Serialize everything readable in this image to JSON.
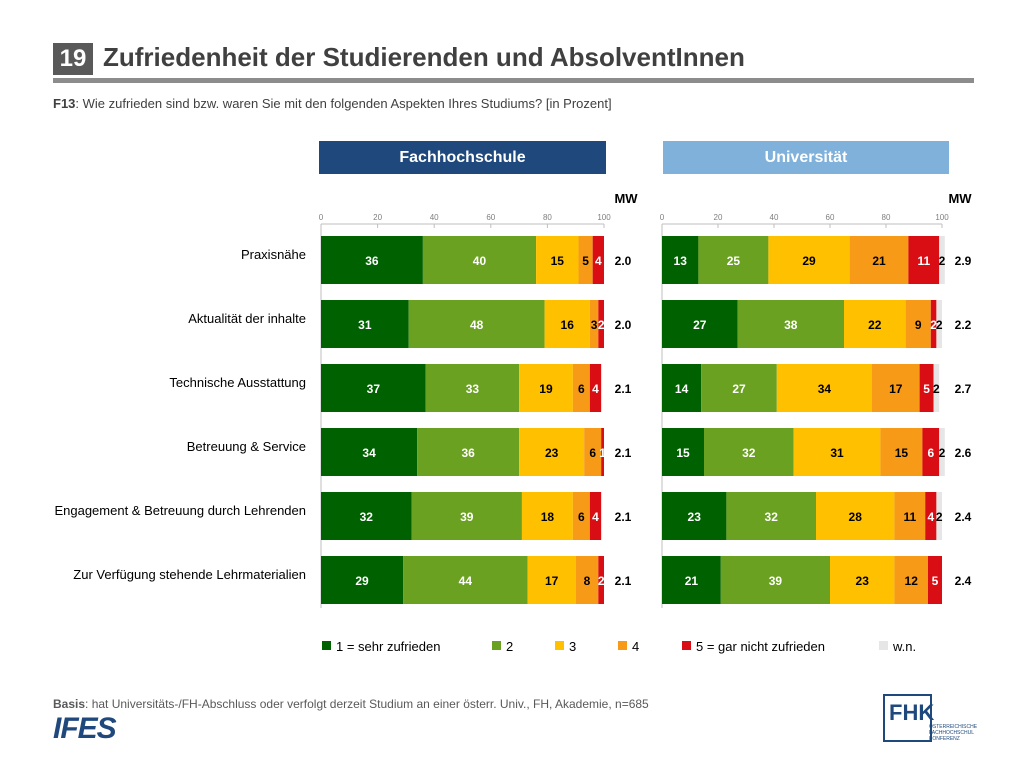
{
  "slide": {
    "number": "19",
    "title": "Zufriedenheit der Studierenden und AbsolventInnen"
  },
  "question": {
    "code": "F13",
    "text": ": Wie zufrieden sind bzw. waren Sie mit den folgenden Aspekten Ihres Studiums? [in Prozent]"
  },
  "basis": {
    "label": "Basis",
    "text": ": hat Universitäts-/FH-Abschluss oder verfolgt derzeit Studium an einer österr. Univ., FH, Akademie, n=685"
  },
  "logos": {
    "left": "IFES",
    "right_letters": "FHK",
    "right_sub": [
      "ÖSTERREICHISCHE",
      "FACHHOCHSCHUL",
      "KONFERENZ"
    ]
  },
  "colors": {
    "c1": "#006100",
    "c2": "#6aa121",
    "c3": "#ffc000",
    "c4": "#f79a18",
    "c5": "#d80e14",
    "wn": "#e6e6e6",
    "fh_header": "#1f497d",
    "uni_header": "#7fb1da"
  },
  "chart_data": [
    {
      "type": "bar",
      "stacked": true,
      "orientation": "horizontal",
      "title": "Fachhochschule",
      "value_label": "MW",
      "xlim": [
        0,
        100
      ],
      "xticks": [
        0,
        20,
        40,
        60,
        80,
        100
      ],
      "categories": [
        "Praxisnähe",
        "Aktualität der inhalte",
        "Technische Ausstattung",
        "Betreuung & Service",
        "Engagement & Betreuung durch Lehrenden",
        "Zur Verfügung stehende Lehrmaterialien"
      ],
      "series": [
        {
          "name": "1 = sehr zufrieden",
          "values": [
            36,
            31,
            37,
            34,
            32,
            29
          ]
        },
        {
          "name": "2",
          "values": [
            40,
            48,
            33,
            36,
            39,
            44
          ]
        },
        {
          "name": "3",
          "values": [
            15,
            16,
            19,
            23,
            18,
            17
          ]
        },
        {
          "name": "4",
          "values": [
            5,
            3,
            6,
            6,
            6,
            8
          ]
        },
        {
          "name": "5 = gar nicht zufrieden",
          "values": [
            4,
            2,
            4,
            1,
            4,
            2
          ]
        },
        {
          "name": "w.n.",
          "values": [
            0,
            0,
            0,
            0,
            0,
            0
          ]
        }
      ],
      "mw": [
        "2.0",
        "2.0",
        "2.1",
        "2.1",
        "2.1",
        "2.1"
      ],
      "segment_labels": [
        [
          "36",
          "40",
          "15",
          "5",
          "4",
          ""
        ],
        [
          "31",
          "48",
          "16",
          "3",
          "2",
          ""
        ],
        [
          "37",
          "33",
          "19",
          "6",
          "4",
          ""
        ],
        [
          "34",
          "36",
          "23",
          "6",
          "1",
          ""
        ],
        [
          "32",
          "39",
          "18",
          "6",
          "4",
          ""
        ],
        [
          "29",
          "44",
          "17",
          "8",
          "2",
          ""
        ]
      ],
      "grid": false
    },
    {
      "type": "bar",
      "stacked": true,
      "orientation": "horizontal",
      "title": "Universität",
      "value_label": "MW",
      "xlim": [
        0,
        100
      ],
      "xticks": [
        0,
        20,
        40,
        60,
        80,
        100
      ],
      "categories": [
        "Praxisnähe",
        "Aktualität der inhalte",
        "Technische Ausstattung",
        "Betreuung & Service",
        "Engagement & Betreuung durch Lehrenden",
        "Zur Verfügung stehende Lehrmaterialien"
      ],
      "series": [
        {
          "name": "1 = sehr zufrieden",
          "values": [
            13,
            27,
            14,
            15,
            23,
            21
          ]
        },
        {
          "name": "2",
          "values": [
            25,
            38,
            27,
            32,
            32,
            39
          ]
        },
        {
          "name": "3",
          "values": [
            29,
            22,
            34,
            31,
            28,
            23
          ]
        },
        {
          "name": "4",
          "values": [
            21,
            9,
            17,
            15,
            11,
            12
          ]
        },
        {
          "name": "5 = gar nicht zufrieden",
          "values": [
            11,
            2,
            5,
            6,
            4,
            5
          ]
        },
        {
          "name": "w.n.",
          "values": [
            2,
            2,
            2,
            2,
            2,
            0
          ]
        }
      ],
      "mw": [
        "2.9",
        "2.2",
        "2.7",
        "2.6",
        "2.4",
        "2.4"
      ],
      "segment_labels": [
        [
          "13",
          "25",
          "29",
          "21",
          "11",
          "2"
        ],
        [
          "27",
          "38",
          "22",
          "9",
          "2",
          "2"
        ],
        [
          "14",
          "27",
          "34",
          "17",
          "5",
          "2"
        ],
        [
          "15",
          "32",
          "31",
          "15",
          "6",
          "2"
        ],
        [
          "23",
          "32",
          "28",
          "11",
          "4",
          "2"
        ],
        [
          "21",
          "39",
          "23",
          "12",
          "5",
          ""
        ]
      ],
      "grid": false
    }
  ],
  "legend": [
    "1 = sehr zufrieden",
    "2",
    "3",
    "4",
    "5 = gar nicht zufrieden",
    "w.n."
  ]
}
